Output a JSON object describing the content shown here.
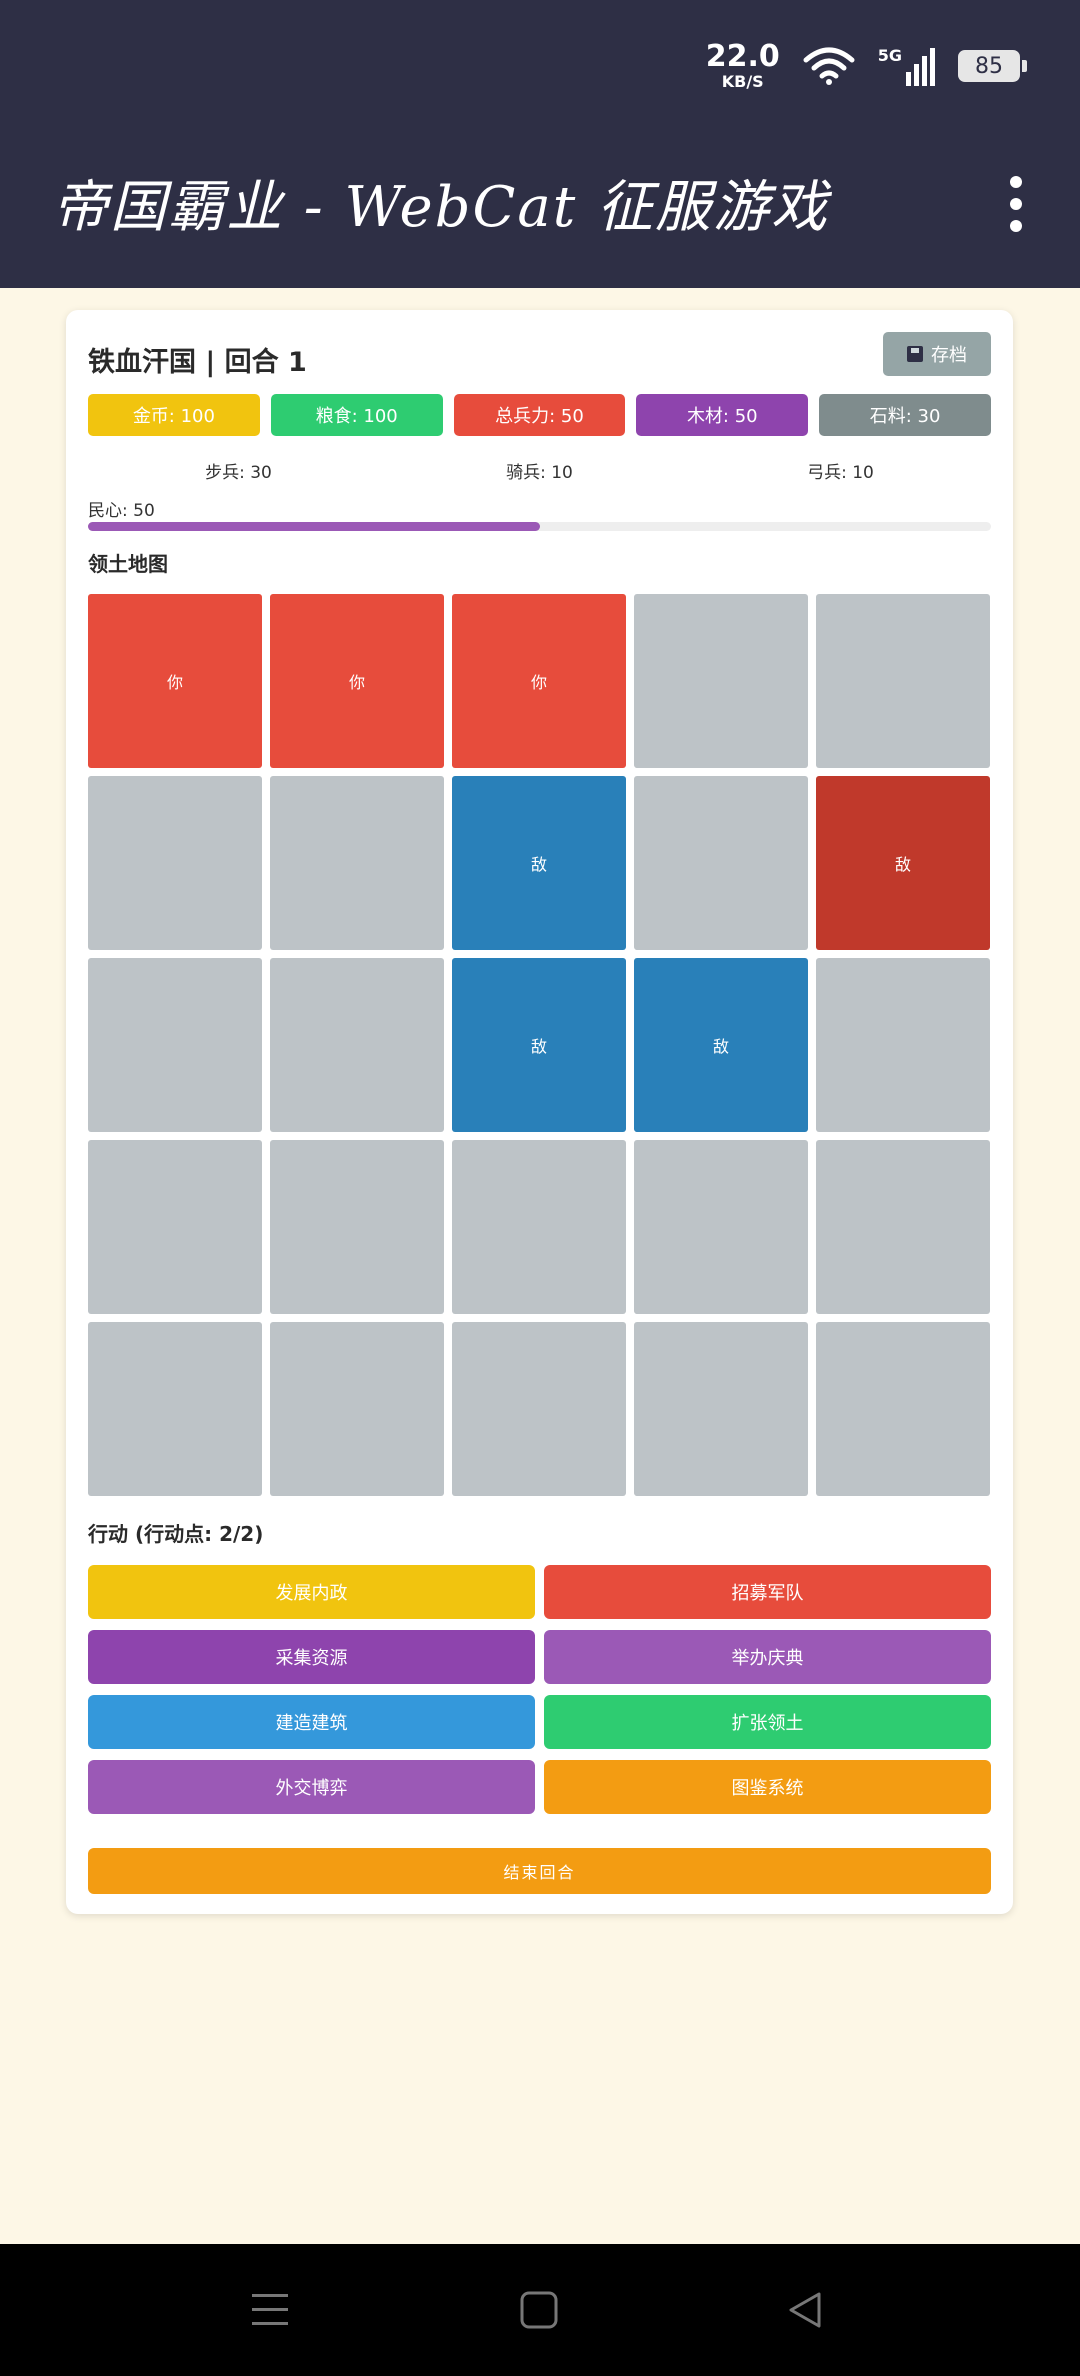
{
  "status_bar": {
    "net_speed": "22.0",
    "net_speed_unit": "KB/S",
    "network_type": "5G",
    "battery": "85"
  },
  "app_bar": {
    "title": "帝国霸业 - WebCat 征服游戏"
  },
  "game": {
    "header": "铁血汗国 | 回合 1",
    "save_label": "存档",
    "resources": [
      {
        "label": "金币: 100",
        "color": "#f1c40f"
      },
      {
        "label": "粮食: 100",
        "color": "#2ecc71"
      },
      {
        "label": "总兵力: 50",
        "color": "#e74c3c"
      },
      {
        "label": "木材: 50",
        "color": "#8e44ad"
      },
      {
        "label": "石料: 30",
        "color": "#7f8c8d"
      }
    ],
    "units": [
      "步兵: 30",
      "骑兵: 10",
      "弓兵: 10"
    ],
    "morale": {
      "label": "民心: 50",
      "value": 50,
      "max": 100,
      "color": "#9b59b6"
    },
    "map": {
      "title": "领土地图",
      "cells": [
        {
          "label": "你",
          "color": "#e74c3c"
        },
        {
          "label": "你",
          "color": "#e74c3c"
        },
        {
          "label": "你",
          "color": "#e74c3c"
        },
        {
          "label": "",
          "color": "#bdc3c7"
        },
        {
          "label": "",
          "color": "#bdc3c7"
        },
        {
          "label": "",
          "color": "#bdc3c7"
        },
        {
          "label": "",
          "color": "#bdc3c7"
        },
        {
          "label": "敌",
          "color": "#2980b9"
        },
        {
          "label": "",
          "color": "#bdc3c7"
        },
        {
          "label": "敌",
          "color": "#c0392b"
        },
        {
          "label": "",
          "color": "#bdc3c7"
        },
        {
          "label": "",
          "color": "#bdc3c7"
        },
        {
          "label": "敌",
          "color": "#2980b9"
        },
        {
          "label": "敌",
          "color": "#2980b9"
        },
        {
          "label": "",
          "color": "#bdc3c7"
        },
        {
          "label": "",
          "color": "#bdc3c7"
        },
        {
          "label": "",
          "color": "#bdc3c7"
        },
        {
          "label": "",
          "color": "#bdc3c7"
        },
        {
          "label": "",
          "color": "#bdc3c7"
        },
        {
          "label": "",
          "color": "#bdc3c7"
        },
        {
          "label": "",
          "color": "#bdc3c7"
        },
        {
          "label": "",
          "color": "#bdc3c7"
        },
        {
          "label": "",
          "color": "#bdc3c7"
        },
        {
          "label": "",
          "color": "#bdc3c7"
        },
        {
          "label": "",
          "color": "#bdc3c7"
        }
      ]
    },
    "actions_title": "行动 (行动点: 2/2)",
    "actions": [
      {
        "label": "发展内政",
        "color": "#f1c40f"
      },
      {
        "label": "招募军队",
        "color": "#e74c3c"
      },
      {
        "label": "采集资源",
        "color": "#8e44ad"
      },
      {
        "label": "举办庆典",
        "color": "#9b59b6"
      },
      {
        "label": "建造建筑",
        "color": "#3498db"
      },
      {
        "label": "扩张领土",
        "color": "#2ecc71"
      },
      {
        "label": "外交博弈",
        "color": "#9b59b6"
      },
      {
        "label": "图鉴系统",
        "color": "#f39c12"
      }
    ],
    "end_turn_label": "结束回合"
  }
}
